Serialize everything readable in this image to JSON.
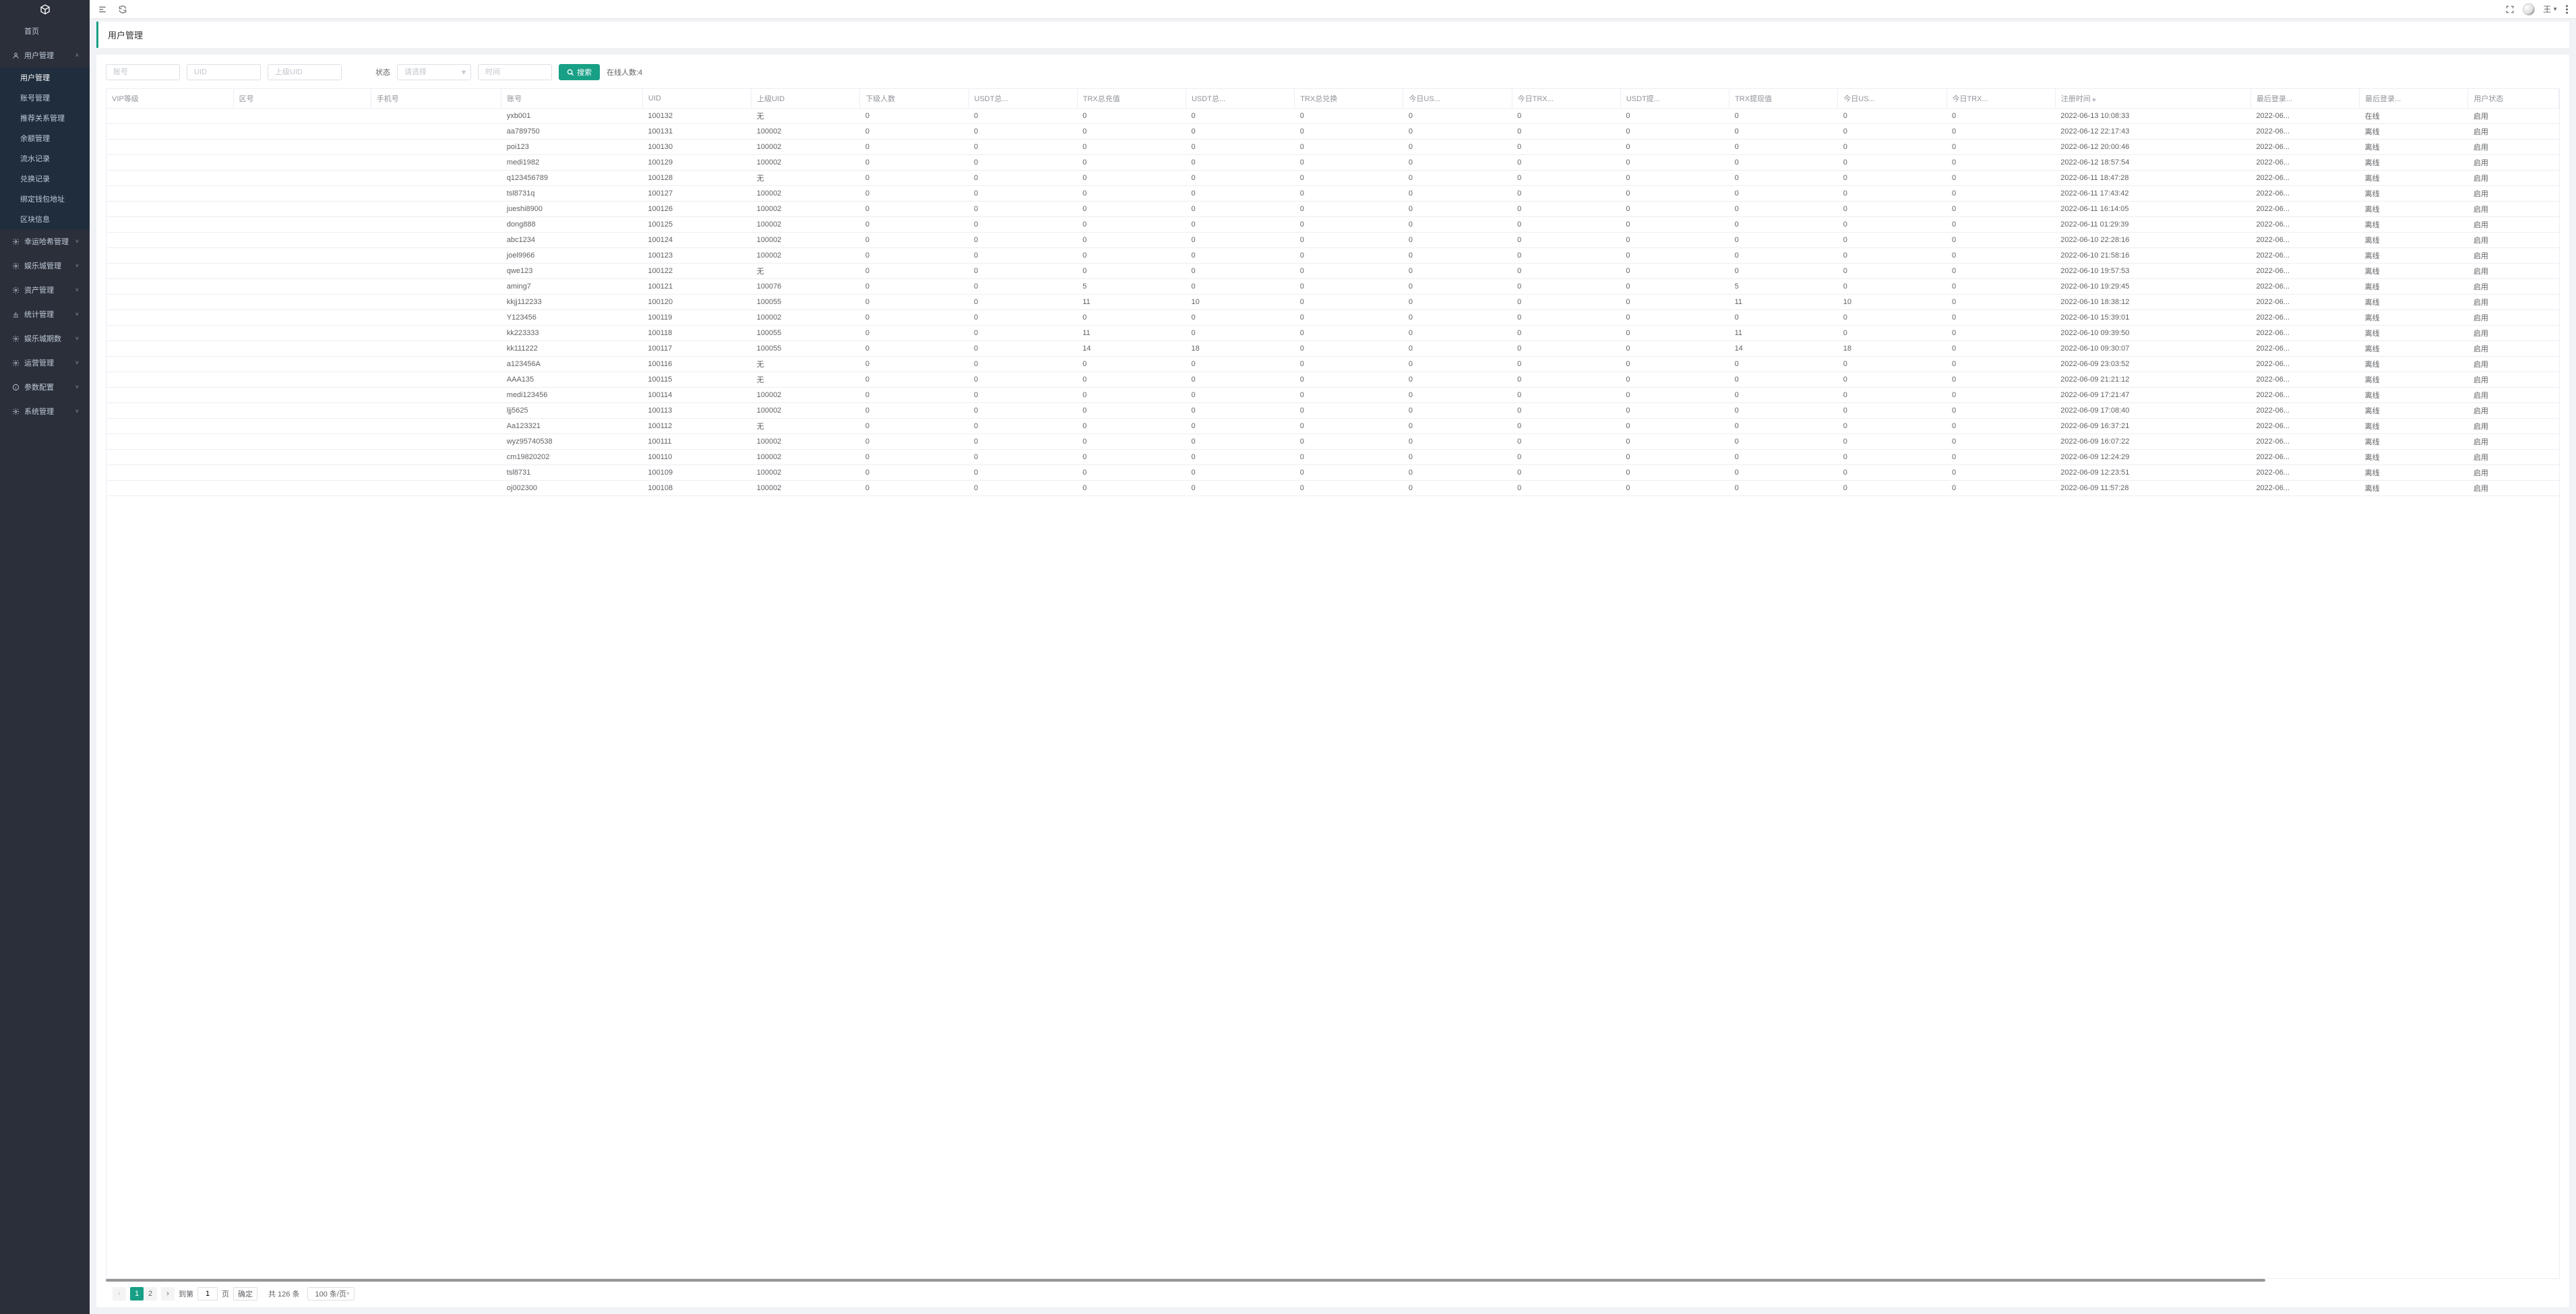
{
  "sidebar": {
    "items": [
      {
        "label": "首页",
        "icon": ""
      },
      {
        "label": "用户管理",
        "icon": "user",
        "expandable": true,
        "expanded": true
      },
      {
        "label": "用户管理",
        "sub": true,
        "active": true
      },
      {
        "label": "账号管理",
        "sub": true
      },
      {
        "label": "推荐关系管理",
        "sub": true
      },
      {
        "label": "余额管理",
        "sub": true
      },
      {
        "label": "流水记录",
        "sub": true
      },
      {
        "label": "兑换记录",
        "sub": true
      },
      {
        "label": "绑定钱包地址",
        "sub": true
      },
      {
        "label": "区块信息",
        "sub": true
      },
      {
        "label": "幸运哈希管理",
        "icon": "gear",
        "expandable": true
      },
      {
        "label": "娱乐城管理",
        "icon": "gear",
        "expandable": true
      },
      {
        "label": "资产管理",
        "icon": "gear",
        "expandable": true
      },
      {
        "label": "统计管理",
        "icon": "chart",
        "expandable": true
      },
      {
        "label": "娱乐城期数",
        "icon": "gear",
        "expandable": true
      },
      {
        "label": "运营管理",
        "icon": "gear",
        "expandable": true
      },
      {
        "label": "参数配置",
        "icon": "info",
        "expandable": true
      },
      {
        "label": "系统管理",
        "icon": "gear",
        "expandable": true
      }
    ]
  },
  "topbar": {
    "username": "王",
    "fullscreen_title": "全屏"
  },
  "page": {
    "title": "用户管理"
  },
  "filters": {
    "account_ph": "账号",
    "uid_ph": "UID",
    "parent_uid_ph": "上级UID",
    "status_label": "状态",
    "status_ph": "请选择",
    "time_ph": "时间",
    "search_btn": "搜索",
    "online_label": "在线人数:4"
  },
  "table": {
    "columns": [
      {
        "label": "VIP等级",
        "w": 70
      },
      {
        "label": "区号",
        "w": 76
      },
      {
        "label": "手机号",
        "w": 72
      },
      {
        "label": "账号",
        "w": 78
      },
      {
        "label": "UID",
        "w": 60
      },
      {
        "label": "上级UID",
        "w": 60
      },
      {
        "label": "下级人数",
        "w": 60
      },
      {
        "label": "USDT总...",
        "w": 60
      },
      {
        "label": "TRX总充值",
        "w": 60
      },
      {
        "label": "USDT总...",
        "w": 60
      },
      {
        "label": "TRX总兑换",
        "w": 60
      },
      {
        "label": "今日US...",
        "w": 60
      },
      {
        "label": "今日TRX...",
        "w": 60
      },
      {
        "label": "USDT提...",
        "w": 60
      },
      {
        "label": "TRX提现值",
        "w": 60
      },
      {
        "label": "今日US...",
        "w": 60
      },
      {
        "label": "今日TRX...",
        "w": 60
      },
      {
        "label": "注册时间",
        "w": 108,
        "sortable": true
      },
      {
        "label": "最后登录...",
        "w": 60
      },
      {
        "label": "最后登录...",
        "w": 60
      },
      {
        "label": "用户状态",
        "w": 50
      }
    ],
    "rows": [
      [
        "",
        "",
        "",
        "yxb001",
        "100132",
        "无",
        "0",
        "0",
        "0",
        "0",
        "0",
        "0",
        "0",
        "0",
        "0",
        "0",
        "0",
        "2022-06-13 10:08:33",
        "2022-06...",
        "在线",
        "启用"
      ],
      [
        "",
        "",
        "",
        "aa789750",
        "100131",
        "100002",
        "0",
        "0",
        "0",
        "0",
        "0",
        "0",
        "0",
        "0",
        "0",
        "0",
        "0",
        "2022-06-12 22:17:43",
        "2022-06...",
        "离线",
        "启用"
      ],
      [
        "",
        "",
        "",
        "poi123",
        "100130",
        "100002",
        "0",
        "0",
        "0",
        "0",
        "0",
        "0",
        "0",
        "0",
        "0",
        "0",
        "0",
        "2022-06-12 20:00:46",
        "2022-06...",
        "离线",
        "启用"
      ],
      [
        "",
        "",
        "",
        "medi1982",
        "100129",
        "100002",
        "0",
        "0",
        "0",
        "0",
        "0",
        "0",
        "0",
        "0",
        "0",
        "0",
        "0",
        "2022-06-12 18:57:54",
        "2022-06...",
        "离线",
        "启用"
      ],
      [
        "",
        "",
        "",
        "q123456789",
        "100128",
        "无",
        "0",
        "0",
        "0",
        "0",
        "0",
        "0",
        "0",
        "0",
        "0",
        "0",
        "0",
        "2022-06-11 18:47:28",
        "2022-06...",
        "离线",
        "启用"
      ],
      [
        "",
        "",
        "",
        "tsl8731q",
        "100127",
        "100002",
        "0",
        "0",
        "0",
        "0",
        "0",
        "0",
        "0",
        "0",
        "0",
        "0",
        "0",
        "2022-06-11 17:43:42",
        "2022-06...",
        "离线",
        "启用"
      ],
      [
        "",
        "",
        "",
        "jueshi8900",
        "100126",
        "100002",
        "0",
        "0",
        "0",
        "0",
        "0",
        "0",
        "0",
        "0",
        "0",
        "0",
        "0",
        "2022-06-11 16:14:05",
        "2022-06...",
        "离线",
        "启用"
      ],
      [
        "",
        "",
        "",
        "dong888",
        "100125",
        "100002",
        "0",
        "0",
        "0",
        "0",
        "0",
        "0",
        "0",
        "0",
        "0",
        "0",
        "0",
        "2022-06-11 01:29:39",
        "2022-06...",
        "离线",
        "启用"
      ],
      [
        "",
        "",
        "",
        "abc1234",
        "100124",
        "100002",
        "0",
        "0",
        "0",
        "0",
        "0",
        "0",
        "0",
        "0",
        "0",
        "0",
        "0",
        "2022-06-10 22:28:16",
        "2022-06...",
        "离线",
        "启用"
      ],
      [
        "",
        "",
        "",
        "joel9966",
        "100123",
        "100002",
        "0",
        "0",
        "0",
        "0",
        "0",
        "0",
        "0",
        "0",
        "0",
        "0",
        "0",
        "2022-06-10 21:58:16",
        "2022-06...",
        "离线",
        "启用"
      ],
      [
        "",
        "",
        "",
        "qwe123",
        "100122",
        "无",
        "0",
        "0",
        "0",
        "0",
        "0",
        "0",
        "0",
        "0",
        "0",
        "0",
        "0",
        "2022-06-10 19:57:53",
        "2022-06...",
        "离线",
        "启用"
      ],
      [
        "",
        "",
        "",
        "aming7",
        "100121",
        "100076",
        "0",
        "0",
        "5",
        "0",
        "0",
        "0",
        "0",
        "0",
        "5",
        "0",
        "0",
        "2022-06-10 19:29:45",
        "2022-06...",
        "离线",
        "启用"
      ],
      [
        "",
        "",
        "",
        "kkjj112233",
        "100120",
        "100055",
        "0",
        "0",
        "11",
        "10",
        "0",
        "0",
        "0",
        "0",
        "11",
        "10",
        "0",
        "2022-06-10 18:38:12",
        "2022-06...",
        "离线",
        "启用"
      ],
      [
        "",
        "",
        "",
        "Y123456",
        "100119",
        "100002",
        "0",
        "0",
        "0",
        "0",
        "0",
        "0",
        "0",
        "0",
        "0",
        "0",
        "0",
        "2022-06-10 15:39:01",
        "2022-06...",
        "离线",
        "启用"
      ],
      [
        "",
        "",
        "",
        "kk223333",
        "100118",
        "100055",
        "0",
        "0",
        "11",
        "0",
        "0",
        "0",
        "0",
        "0",
        "11",
        "0",
        "0",
        "2022-06-10 09:39:50",
        "2022-06...",
        "离线",
        "启用"
      ],
      [
        "",
        "",
        "",
        "kk111222",
        "100117",
        "100055",
        "0",
        "0",
        "14",
        "18",
        "0",
        "0",
        "0",
        "0",
        "14",
        "18",
        "0",
        "2022-06-10 09:30:07",
        "2022-06...",
        "离线",
        "启用"
      ],
      [
        "",
        "",
        "",
        "a123456A",
        "100116",
        "无",
        "0",
        "0",
        "0",
        "0",
        "0",
        "0",
        "0",
        "0",
        "0",
        "0",
        "0",
        "2022-06-09 23:03:52",
        "2022-06...",
        "离线",
        "启用"
      ],
      [
        "",
        "",
        "",
        "AAA135",
        "100115",
        "无",
        "0",
        "0",
        "0",
        "0",
        "0",
        "0",
        "0",
        "0",
        "0",
        "0",
        "0",
        "2022-06-09 21:21:12",
        "2022-06...",
        "离线",
        "启用"
      ],
      [
        "",
        "",
        "",
        "medi123456",
        "100114",
        "100002",
        "0",
        "0",
        "0",
        "0",
        "0",
        "0",
        "0",
        "0",
        "0",
        "0",
        "0",
        "2022-06-09 17:21:47",
        "2022-06...",
        "离线",
        "启用"
      ],
      [
        "",
        "",
        "",
        "ljj5625",
        "100113",
        "100002",
        "0",
        "0",
        "0",
        "0",
        "0",
        "0",
        "0",
        "0",
        "0",
        "0",
        "0",
        "2022-06-09 17:08:40",
        "2022-06...",
        "离线",
        "启用"
      ],
      [
        "",
        "",
        "",
        "Aa123321",
        "100112",
        "无",
        "0",
        "0",
        "0",
        "0",
        "0",
        "0",
        "0",
        "0",
        "0",
        "0",
        "0",
        "2022-06-09 16:37:21",
        "2022-06...",
        "离线",
        "启用"
      ],
      [
        "",
        "",
        "",
        "wyz95740538",
        "100111",
        "100002",
        "0",
        "0",
        "0",
        "0",
        "0",
        "0",
        "0",
        "0",
        "0",
        "0",
        "0",
        "2022-06-09 16:07:22",
        "2022-06...",
        "离线",
        "启用"
      ],
      [
        "",
        "",
        "",
        "cm19820202",
        "100110",
        "100002",
        "0",
        "0",
        "0",
        "0",
        "0",
        "0",
        "0",
        "0",
        "0",
        "0",
        "0",
        "2022-06-09 12:24:29",
        "2022-06...",
        "离线",
        "启用"
      ],
      [
        "",
        "",
        "",
        "tsl8731",
        "100109",
        "100002",
        "0",
        "0",
        "0",
        "0",
        "0",
        "0",
        "0",
        "0",
        "0",
        "0",
        "0",
        "2022-06-09 12:23:51",
        "2022-06...",
        "离线",
        "启用"
      ],
      [
        "",
        "",
        "",
        "oj002300",
        "100108",
        "100002",
        "0",
        "0",
        "0",
        "0",
        "0",
        "0",
        "0",
        "0",
        "0",
        "0",
        "0",
        "2022-06-09 11:57:28",
        "2022-06...",
        "离线",
        "启用"
      ]
    ]
  },
  "pagination": {
    "page": 1,
    "pages": [
      1,
      2
    ],
    "goto_label": "到第",
    "page_suffix": "页",
    "goto_value": "1",
    "confirm": "确定",
    "total": "共 126 条",
    "pagesize": "100 条/页"
  }
}
